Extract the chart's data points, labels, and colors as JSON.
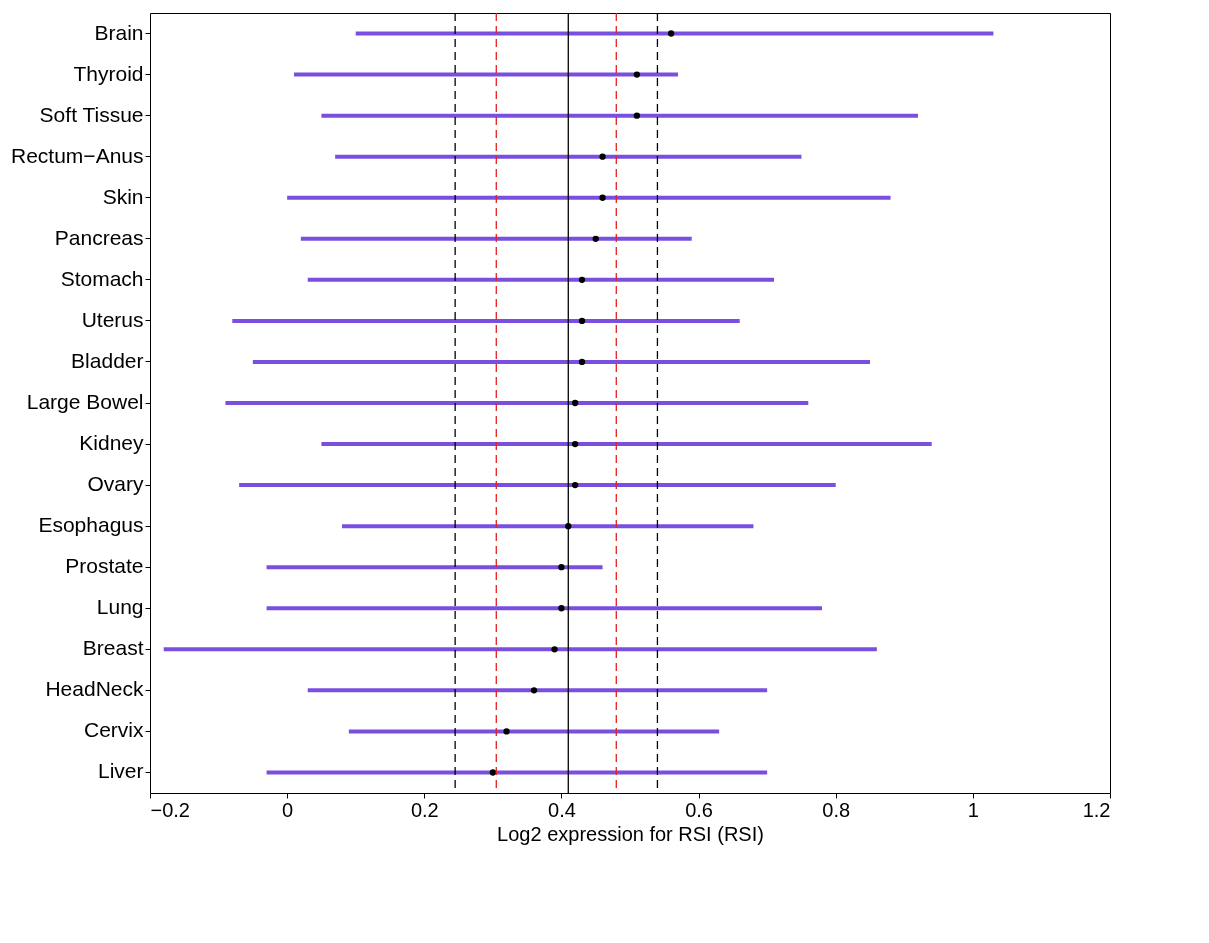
{
  "chart_data": {
    "type": "scatter",
    "orientation": "horizontal",
    "xlabel": "Log2 expression for RSI (RSI)",
    "marker": "circle",
    "grid": false,
    "categories": [
      "Brain",
      "Thyroid",
      "Soft Tissue",
      "Rectum−Anus",
      "Skin",
      "Pancreas",
      "Stomach",
      "Uterus",
      "Bladder",
      "Large Bowel",
      "Kidney",
      "Ovary",
      "Esophagus",
      "Prostate",
      "Lung",
      "Breast",
      "HeadNeck",
      "Cervix",
      "Liver"
    ],
    "series": [
      {
        "color": "#000000",
        "values": [
          0.56,
          0.51,
          0.51,
          0.46,
          0.46,
          0.45,
          0.43,
          0.43,
          0.43,
          0.42,
          0.42,
          0.42,
          0.41,
          0.4,
          0.4,
          0.39,
          0.36,
          0.32,
          0.3
        ],
        "errors": [
          [
            0.1,
            1.03
          ],
          [
            0.01,
            0.57
          ],
          [
            0.05,
            0.92
          ],
          [
            0.07,
            0.75
          ],
          [
            0.0,
            0.88
          ],
          [
            0.02,
            0.59
          ],
          [
            0.03,
            0.71
          ],
          [
            -0.08,
            0.66
          ],
          [
            -0.05,
            0.85
          ],
          [
            -0.09,
            0.76
          ],
          [
            0.05,
            0.94
          ],
          [
            -0.07,
            0.8
          ],
          [
            0.08,
            0.68
          ],
          [
            -0.03,
            0.46
          ],
          [
            -0.03,
            0.78
          ],
          [
            -0.18,
            0.86
          ],
          [
            0.03,
            0.7
          ],
          [
            0.09,
            0.63
          ],
          [
            -0.03,
            0.7
          ]
        ]
      }
    ],
    "xlim": [
      -0.2,
      1.2
    ],
    "xticks": [
      {
        "value": -0.2,
        "label": "−0.2"
      },
      0,
      0.2,
      0.4,
      0.6,
      0.8,
      1,
      1.2
    ],
    "ref_lines": [
      {
        "axis": "x",
        "value": 0.245,
        "color": "#000000",
        "line_style": "dashed"
      },
      {
        "axis": "x",
        "value": 0.305,
        "color": "#e02020",
        "line_style": "dashed"
      },
      {
        "axis": "x",
        "value": 0.41,
        "color": "#000000",
        "line_style": "solid"
      },
      {
        "axis": "x",
        "value": 0.48,
        "color": "#e02020",
        "line_style": "dashed"
      },
      {
        "axis": "x",
        "value": 0.54,
        "color": "#000000",
        "line_style": "dashed"
      }
    ]
  }
}
